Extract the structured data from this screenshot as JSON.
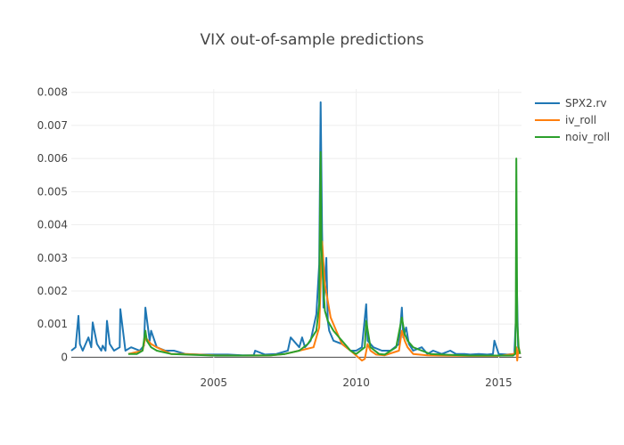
{
  "chart_data": {
    "type": "line",
    "title": "VIX out-of-sample predictions",
    "xlabel": "",
    "ylabel": "",
    "xlim": [
      2000.0,
      2015.8
    ],
    "ylim": [
      -0.0005,
      0.0081
    ],
    "x_ticks": [
      2005,
      2010,
      2015
    ],
    "x_tick_labels": [
      "2005",
      "2010",
      "2015"
    ],
    "y_ticks": [
      0,
      0.001,
      0.002,
      0.003,
      0.004,
      0.005,
      0.006,
      0.007,
      0.008
    ],
    "y_tick_labels": [
      "0",
      "0.001",
      "0.002",
      "0.003",
      "0.004",
      "0.005",
      "0.006",
      "0.007",
      "0.008"
    ],
    "grid": true,
    "legend_position": "right",
    "series": [
      {
        "name": "SPX2.rv",
        "color": "#1f77b4",
        "x": [
          2000.0,
          2000.15,
          2000.25,
          2000.3,
          2000.4,
          2000.6,
          2000.7,
          2000.75,
          2000.9,
          2001.05,
          2001.1,
          2001.2,
          2001.25,
          2001.35,
          2001.5,
          2001.7,
          2001.72,
          2001.9,
          2002.1,
          2002.4,
          2002.55,
          2002.6,
          2002.75,
          2002.8,
          2003.0,
          2003.3,
          2003.6,
          2004.0,
          2004.5,
          2005.0,
          2005.5,
          2006.0,
          2006.4,
          2006.45,
          2006.8,
          2007.2,
          2007.6,
          2007.7,
          2008.0,
          2008.1,
          2008.2,
          2008.4,
          2008.6,
          2008.7,
          2008.75,
          2008.8,
          2008.85,
          2008.95,
          2009.0,
          2009.05,
          2009.2,
          2009.5,
          2009.8,
          2010.0,
          2010.2,
          2010.35,
          2010.4,
          2010.6,
          2010.9,
          2011.2,
          2011.5,
          2011.6,
          2011.65,
          2011.75,
          2011.85,
          2012.0,
          2012.3,
          2012.5,
          2012.7,
          2013.0,
          2013.3,
          2013.5,
          2013.8,
          2014.0,
          2014.3,
          2014.6,
          2014.8,
          2014.85,
          2015.0,
          2015.3,
          2015.55,
          2015.6,
          2015.63,
          2015.68,
          2015.75
        ],
        "values": [
          0.0002,
          0.0003,
          0.00125,
          0.0004,
          0.0002,
          0.0006,
          0.0003,
          0.00105,
          0.0004,
          0.0002,
          0.00035,
          0.0002,
          0.0011,
          0.0004,
          0.0002,
          0.0003,
          0.00145,
          0.0002,
          0.0003,
          0.0002,
          0.00035,
          0.0015,
          0.0005,
          0.0008,
          0.0003,
          0.0002,
          0.0002,
          0.0001,
          8e-05,
          8e-05,
          8e-05,
          6e-05,
          6e-05,
          0.0002,
          8e-05,
          0.0001,
          0.0002,
          0.0006,
          0.0003,
          0.0006,
          0.0003,
          0.0005,
          0.0013,
          0.0028,
          0.0077,
          0.0038,
          0.0015,
          0.003,
          0.0011,
          0.0008,
          0.0005,
          0.0004,
          0.0002,
          0.0002,
          0.0003,
          0.0016,
          0.0005,
          0.0003,
          0.0002,
          0.0002,
          0.0004,
          0.0015,
          0.0006,
          0.0009,
          0.0004,
          0.0002,
          0.0003,
          0.0001,
          0.0002,
          0.0001,
          0.0002,
          0.0001,
          0.0001,
          8e-05,
          0.0001,
          8e-05,
          0.0001,
          0.0005,
          0.0001,
          8e-05,
          0.0001,
          0.0011,
          0.0024,
          0.0003,
          0.0001
        ]
      },
      {
        "name": "iv_roll",
        "color": "#ff7f0e",
        "x": [
          2002.0,
          2002.5,
          2002.6,
          2002.8,
          2003.0,
          2003.5,
          2004.0,
          2005.0,
          2006.0,
          2007.0,
          2007.5,
          2008.0,
          2008.5,
          2008.7,
          2008.8,
          2008.9,
          2009.0,
          2009.1,
          2009.3,
          2009.5,
          2009.8,
          2010.0,
          2010.2,
          2010.3,
          2010.4,
          2010.5,
          2010.7,
          2011.0,
          2011.5,
          2011.6,
          2011.7,
          2011.8,
          2012.0,
          2012.5,
          2013.0,
          2014.0,
          2015.0,
          2015.55,
          2015.62,
          2015.65,
          2015.7,
          2015.75
        ],
        "values": [
          0.0001,
          0.0002,
          0.0006,
          0.0004,
          0.0003,
          0.0001,
          0.0001,
          6e-05,
          5e-05,
          6e-05,
          0.0001,
          0.0002,
          0.0003,
          0.0009,
          0.0035,
          0.0022,
          0.0017,
          0.0012,
          0.0008,
          0.0004,
          0.0002,
          5e-05,
          -0.0001,
          -5e-05,
          0.0004,
          0.0002,
          8e-05,
          6e-05,
          0.0002,
          0.0008,
          0.0005,
          0.0003,
          0.0001,
          6e-05,
          5e-05,
          4e-05,
          4e-05,
          0.0001,
          0.0003,
          -0.0001,
          0.0003,
          0.0001
        ]
      },
      {
        "name": "noiv_roll",
        "color": "#2ca02c",
        "x": [
          2002.0,
          2002.3,
          2002.5,
          2002.6,
          2002.65,
          2002.8,
          2003.0,
          2003.5,
          2004.0,
          2005.0,
          2006.0,
          2007.0,
          2007.5,
          2008.0,
          2008.3,
          2008.6,
          2008.7,
          2008.75,
          2008.78,
          2008.85,
          2008.9,
          2009.0,
          2009.2,
          2009.4,
          2009.6,
          2009.8,
          2010.0,
          2010.3,
          2010.35,
          2010.5,
          2010.8,
          2011.0,
          2011.4,
          2011.6,
          2011.7,
          2011.8,
          2012.0,
          2012.3,
          2012.6,
          2013.0,
          2014.0,
          2015.0,
          2015.5,
          2015.58,
          2015.6,
          2015.62,
          2015.65,
          2015.7,
          2015.75
        ],
        "values": [
          0.0001,
          0.0001,
          0.0002,
          0.0008,
          0.0005,
          0.0003,
          0.0002,
          0.0001,
          8e-05,
          5e-05,
          5e-05,
          6e-05,
          0.0001,
          0.0002,
          0.0004,
          0.0008,
          0.0016,
          0.0062,
          0.0033,
          0.0021,
          0.0014,
          0.0011,
          0.0008,
          0.0006,
          0.0004,
          0.0002,
          0.0001,
          0.0003,
          0.0011,
          0.0003,
          0.0001,
          8e-05,
          0.0003,
          0.0012,
          0.0007,
          0.0005,
          0.0003,
          0.0002,
          0.0001,
          8e-05,
          5e-05,
          5e-05,
          5e-05,
          0.0001,
          0.0012,
          0.006,
          0.0011,
          0.0003,
          0.0001
        ]
      }
    ]
  }
}
